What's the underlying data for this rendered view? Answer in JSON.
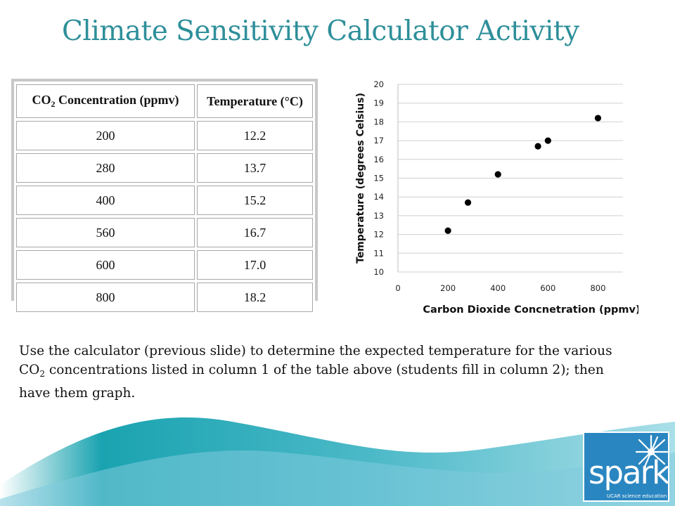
{
  "slide": {
    "title": "Climate Sensitivity Calculator Activity",
    "instructions_pre": "Use the calculator (previous slide) to determine the expected temperature for the various CO",
    "instructions_sub": "2",
    "instructions_post": " concentrations listed in column 1 of the table above (students fill in column 2); then have them graph."
  },
  "table": {
    "header_co2_main": "CO",
    "header_co2_sub": "2",
    "header_co2_rest": " Concentration (ppmv)",
    "header_temp": "Temperature (°C)",
    "rows": [
      {
        "co2": "200",
        "temp": "12.2"
      },
      {
        "co2": "280",
        "temp": "13.7"
      },
      {
        "co2": "400",
        "temp": "15.2"
      },
      {
        "co2": "560",
        "temp": "16.7"
      },
      {
        "co2": "600",
        "temp": "17.0"
      },
      {
        "co2": "800",
        "temp": "18.2"
      }
    ]
  },
  "chart_data": {
    "type": "scatter",
    "xlabel": "Carbon Dioxide Concnetration (ppmv)",
    "ylabel": "Temperature (degrees Celsius)",
    "xlim": [
      0,
      900
    ],
    "ylim": [
      10,
      20
    ],
    "x_ticks": [
      0,
      200,
      400,
      600,
      800
    ],
    "y_ticks": [
      10,
      11,
      12,
      13,
      14,
      15,
      16,
      17,
      18,
      19,
      20
    ],
    "grid": "horizontal",
    "x": [
      200,
      280,
      400,
      560,
      600,
      800
    ],
    "y": [
      12.2,
      13.7,
      15.2,
      16.7,
      17.0,
      18.2
    ]
  },
  "logo": {
    "word": "spark",
    "tagline": "UCAR science education",
    "colors": {
      "background": "#2a86c0",
      "text": "#ffffff"
    }
  },
  "colors": {
    "title": "#2e8f9a",
    "wave_dark": "#1aa3b0",
    "wave_light": "#8fd3e0"
  }
}
